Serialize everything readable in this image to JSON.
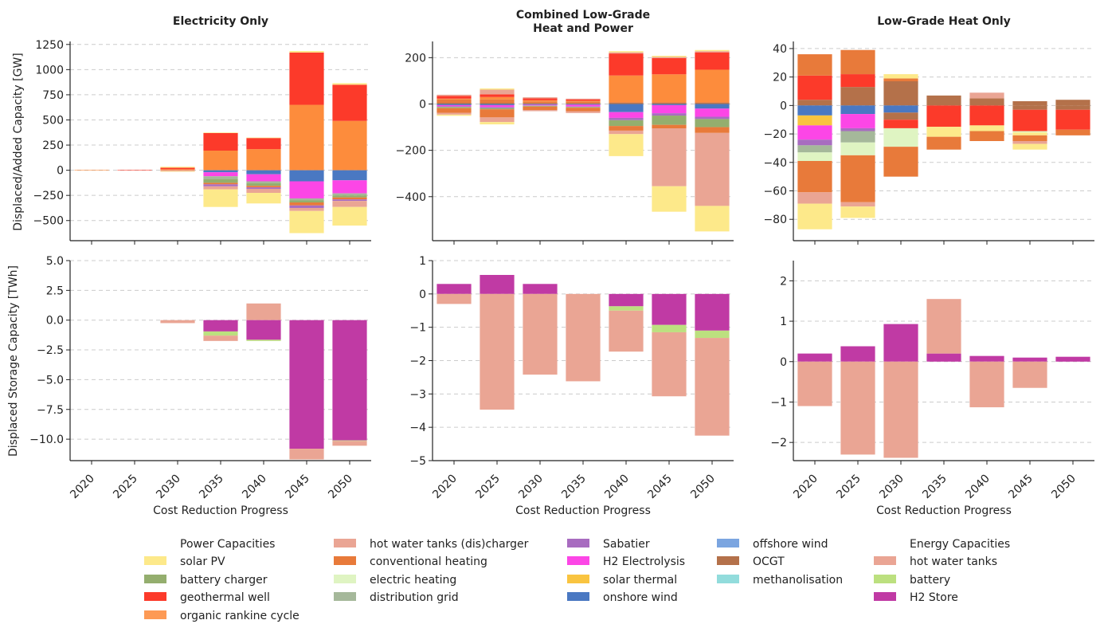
{
  "figure": {
    "ylabel_top": "Displaced/Added Capacity [GW]",
    "ylabel_bottom": "Displaced Storage Capacity [TWh]",
    "xlabel": "Cost Reduction Progress"
  },
  "legend": {
    "header_power": "Power Capacities",
    "header_energy": "Energy Capacities",
    "power_items": [
      {
        "label": "solar PV",
        "color": "#fde98a"
      },
      {
        "label": "battery charger",
        "color": "#94ae6e"
      },
      {
        "label": "geothermal well",
        "color": "#fc3a2a"
      },
      {
        "label": "organic rankine cycle",
        "color": "#fd9a55"
      },
      {
        "label": "hot water tanks (dis)charger",
        "color": "#eaa594"
      },
      {
        "label": "conventional heating",
        "color": "#e87a3a"
      },
      {
        "label": "electric heating",
        "color": "#dff4c2"
      },
      {
        "label": "distribution grid",
        "color": "#a5b89a"
      },
      {
        "label": "Sabatier",
        "color": "#a86cc0"
      },
      {
        "label": "H2 Electrolysis",
        "color": "#fc46e6"
      },
      {
        "label": "solar thermal",
        "color": "#f9c440"
      },
      {
        "label": "onshore wind",
        "color": "#4a78c2"
      },
      {
        "label": "offshore wind",
        "color": "#7ba5e0"
      },
      {
        "label": "OCGT",
        "color": "#b4714a"
      },
      {
        "label": "methanolisation",
        "color": "#92dcdc"
      }
    ],
    "energy_items": [
      {
        "label": "hot water tanks",
        "color": "#eaa594"
      },
      {
        "label": "battery",
        "color": "#bce07f"
      },
      {
        "label": "H2 Store",
        "color": "#c03aa4"
      }
    ]
  },
  "chart_data": [
    {
      "type": "bar",
      "stacked": true,
      "title": "Electricity Only",
      "ylabel": "Displaced/Added Capacity [GW]",
      "xlabel": "",
      "ylim": [
        -700,
        1280
      ],
      "yticks": [
        -500,
        -250,
        0,
        250,
        500,
        750,
        1000,
        1250
      ],
      "yticklabels": [
        "−500",
        "−250",
        "0",
        "250",
        "500",
        "750",
        "1000",
        "1250"
      ],
      "categories": [
        "2020",
        "2025",
        "2030",
        "2035",
        "2040",
        "2045",
        "2050"
      ],
      "grid": true,
      "series": [
        {
          "name": "organic rankine cycle",
          "color": "#fd8c3c",
          "values": [
            5,
            0,
            10,
            195,
            210,
            650,
            490
          ]
        },
        {
          "name": "geothermal well",
          "color": "#fc3a2a",
          "values": [
            0,
            5,
            15,
            175,
            110,
            520,
            360
          ]
        },
        {
          "name": "solar PV",
          "color": "#fde98a",
          "values": [
            0,
            0,
            10,
            5,
            5,
            15,
            15
          ]
        },
        {
          "name": "onshore wind",
          "color": "#4a78c2",
          "values": [
            0,
            0,
            0,
            -20,
            -40,
            -110,
            -100
          ]
        },
        {
          "name": "H2 Electrolysis",
          "color": "#fc46e6",
          "values": [
            0,
            0,
            0,
            -40,
            -70,
            -170,
            -130
          ]
        },
        {
          "name": "distribution grid",
          "color": "#a5b89a",
          "values": [
            0,
            0,
            0,
            -30,
            -20,
            -20,
            -20
          ]
        },
        {
          "name": "battery charger",
          "color": "#94ae6e",
          "values": [
            0,
            0,
            0,
            -35,
            -25,
            -20,
            -20
          ]
        },
        {
          "name": "conventional heating",
          "color": "#e87a3a",
          "values": [
            0,
            0,
            0,
            -15,
            -15,
            -30,
            -20
          ]
        },
        {
          "name": "Sabatier",
          "color": "#a86cc0",
          "values": [
            0,
            0,
            0,
            -20,
            -15,
            -25,
            -15
          ]
        },
        {
          "name": "hot water tanks (dis)charger",
          "color": "#eaa594",
          "values": [
            0,
            0,
            -10,
            -30,
            -40,
            -30,
            -60
          ]
        },
        {
          "name": "solar PV",
          "color": "#fde98a",
          "values": [
            0,
            0,
            -5,
            -175,
            -105,
            -220,
            -185
          ]
        }
      ]
    },
    {
      "type": "bar",
      "stacked": true,
      "title": "Combined Low-Grade\nHeat and Power",
      "ylabel": "",
      "xlabel": "",
      "ylim": [
        -590,
        270
      ],
      "yticks": [
        -400,
        -200,
        0,
        200
      ],
      "yticklabels": [
        "−400",
        "−200",
        "0",
        "200"
      ],
      "categories": [
        "2020",
        "2025",
        "2030",
        "2035",
        "2040",
        "2045",
        "2050"
      ],
      "grid": true,
      "series": [
        {
          "name": "OCGT",
          "color": "#b4714a",
          "values": [
            5,
            5,
            3,
            3,
            5,
            5,
            5
          ]
        },
        {
          "name": "conventional heating",
          "color": "#e87a3a",
          "values": [
            15,
            15,
            8,
            8,
            3,
            3,
            3
          ]
        },
        {
          "name": "organic rankine cycle",
          "color": "#fd8c3c",
          "values": [
            3,
            10,
            5,
            3,
            115,
            120,
            140
          ]
        },
        {
          "name": "geothermal well",
          "color": "#fc3a2a",
          "values": [
            12,
            12,
            8,
            6,
            95,
            70,
            75
          ]
        },
        {
          "name": "hot water tanks (dis)charger",
          "color": "#eaa594",
          "values": [
            5,
            20,
            5,
            3,
            5,
            5,
            5
          ]
        },
        {
          "name": "solar PV",
          "color": "#fde98a",
          "values": [
            0,
            5,
            0,
            0,
            5,
            5,
            5
          ]
        },
        {
          "name": "onshore wind",
          "color": "#4a78c2",
          "values": [
            -5,
            -5,
            -3,
            -3,
            -35,
            -5,
            -20
          ]
        },
        {
          "name": "H2 Electrolysis",
          "color": "#fc46e6",
          "values": [
            -5,
            -8,
            -3,
            -8,
            -25,
            -35,
            -35
          ]
        },
        {
          "name": "Sabatier",
          "color": "#a86cc0",
          "values": [
            -3,
            -5,
            -2,
            -2,
            -10,
            -10,
            -10
          ]
        },
        {
          "name": "battery charger",
          "color": "#94ae6e",
          "values": [
            -5,
            -5,
            -3,
            -3,
            -25,
            -40,
            -35
          ]
        },
        {
          "name": "conventional heating",
          "color": "#e87a3a",
          "values": [
            -20,
            -35,
            -15,
            -15,
            -20,
            -15,
            -25
          ]
        },
        {
          "name": "hot water tanks (dis)charger",
          "color": "#eaa594",
          "values": [
            -8,
            -20,
            -5,
            -8,
            -15,
            -250,
            -315
          ]
        },
        {
          "name": "solar PV",
          "color": "#fde98a",
          "values": [
            -5,
            -10,
            0,
            0,
            -95,
            -110,
            -110
          ]
        }
      ]
    },
    {
      "type": "bar",
      "stacked": true,
      "title": "Low-Grade Heat Only",
      "ylabel": "",
      "xlabel": "",
      "ylim": [
        -95,
        45
      ],
      "yticks": [
        -80,
        -60,
        -40,
        -20,
        0,
        20,
        40
      ],
      "yticklabels": [
        "−80",
        "−60",
        "−40",
        "−20",
        "0",
        "20",
        "40"
      ],
      "categories": [
        "2020",
        "2025",
        "2030",
        "2035",
        "2040",
        "2045",
        "2050"
      ],
      "grid": true,
      "series": [
        {
          "name": "OCGT",
          "color": "#b4714a",
          "values": [
            4,
            13,
            17,
            7,
            5,
            3,
            4
          ]
        },
        {
          "name": "geothermal well",
          "color": "#fc3a2a",
          "values": [
            17,
            9,
            0,
            0,
            0,
            0,
            0
          ]
        },
        {
          "name": "conventional heating",
          "color": "#e87a3a",
          "values": [
            15,
            17,
            2,
            0,
            0,
            0,
            0
          ]
        },
        {
          "name": "hot water tanks (dis)charger",
          "color": "#eaa594",
          "values": [
            0,
            0,
            0,
            0,
            4,
            0,
            0
          ]
        },
        {
          "name": "solar PV",
          "color": "#fde98a",
          "values": [
            0,
            0,
            3,
            0,
            0,
            0,
            0
          ]
        },
        {
          "name": "onshore wind",
          "color": "#4a78c2",
          "values": [
            -7,
            -6,
            -5,
            0,
            0,
            0,
            0
          ]
        },
        {
          "name": "solar thermal",
          "color": "#f9c440",
          "values": [
            -7,
            0,
            0,
            0,
            0,
            0,
            0
          ]
        },
        {
          "name": "OCGT",
          "color": "#b4714a",
          "values": [
            0,
            0,
            -5,
            0,
            0,
            -3,
            -3
          ]
        },
        {
          "name": "H2 Electrolysis",
          "color": "#fc46e6",
          "values": [
            -10,
            -10,
            0,
            0,
            0,
            0,
            0
          ]
        },
        {
          "name": "geothermal well",
          "color": "#fc3a2a",
          "values": [
            0,
            0,
            -6,
            -15,
            -14,
            -15,
            -14
          ]
        },
        {
          "name": "Sabatier",
          "color": "#a86cc0",
          "values": [
            -4,
            -2,
            0,
            0,
            0,
            0,
            0
          ]
        },
        {
          "name": "distribution grid",
          "color": "#a5b89a",
          "values": [
            -5,
            -8,
            0,
            0,
            0,
            0,
            0
          ]
        },
        {
          "name": "electric heating",
          "color": "#dff4c2",
          "values": [
            -6,
            -9,
            -13,
            0,
            0,
            -1,
            0
          ]
        },
        {
          "name": "solar PV",
          "color": "#fde98a",
          "values": [
            0,
            0,
            0,
            -7,
            -4,
            -2,
            0
          ]
        },
        {
          "name": "conventional heating",
          "color": "#e87a3a",
          "values": [
            -22,
            -33,
            -21,
            -9,
            -7,
            -4,
            -4
          ]
        },
        {
          "name": "hot water tanks (dis)charger",
          "color": "#eaa594",
          "values": [
            -8,
            -3,
            0,
            0,
            0,
            -2,
            0
          ]
        },
        {
          "name": "solar PV",
          "color": "#fde98a",
          "values": [
            -18,
            -8,
            0,
            0,
            0,
            -4,
            0
          ]
        }
      ]
    },
    {
      "type": "bar",
      "stacked": true,
      "title": "",
      "ylabel": "Displaced Storage Capacity [TWh]",
      "xlabel": "Cost Reduction Progress",
      "ylim": [
        -11.8,
        5.0
      ],
      "yticks": [
        -10.0,
        -7.5,
        -5.0,
        -2.5,
        0.0,
        2.5,
        5.0
      ],
      "yticklabels": [
        "−10.0",
        "−7.5",
        "−5.0",
        "−2.5",
        "0.0",
        "2.5",
        "5.0"
      ],
      "categories": [
        "2020",
        "2025",
        "2030",
        "2035",
        "2040",
        "2045",
        "2050"
      ],
      "grid": true,
      "series": [
        {
          "name": "hot water tanks",
          "color": "#eaa594",
          "values": [
            0,
            0,
            0,
            0,
            1.4,
            0,
            0
          ]
        },
        {
          "name": "H2 Store",
          "color": "#c03aa4",
          "values": [
            0,
            0,
            0,
            -0.95,
            -1.65,
            -10.8,
            -10.1
          ]
        },
        {
          "name": "battery",
          "color": "#bce07f",
          "values": [
            0,
            0,
            0,
            -0.35,
            -0.1,
            0,
            -0.05
          ]
        },
        {
          "name": "hot water tanks",
          "color": "#eaa594",
          "values": [
            0,
            0,
            -0.25,
            -0.45,
            0,
            -0.9,
            -0.4
          ]
        }
      ]
    },
    {
      "type": "bar",
      "stacked": true,
      "title": "",
      "ylabel": "",
      "xlabel": "Cost Reduction Progress",
      "ylim": [
        -5,
        1
      ],
      "yticks": [
        -5,
        -4,
        -3,
        -2,
        -1,
        0,
        1
      ],
      "yticklabels": [
        "−5",
        "−4",
        "−3",
        "−2",
        "−1",
        "0",
        "1"
      ],
      "categories": [
        "2020",
        "2025",
        "2030",
        "2035",
        "2040",
        "2045",
        "2050"
      ],
      "grid": true,
      "series": [
        {
          "name": "H2 Store",
          "color": "#c03aa4",
          "values": [
            0.3,
            0.57,
            0.3,
            0,
            -0.37,
            -0.93,
            -1.1
          ]
        },
        {
          "name": "battery",
          "color": "#bce07f",
          "values": [
            0,
            0,
            0,
            0,
            -0.13,
            -0.22,
            -0.22
          ]
        },
        {
          "name": "hot water tanks",
          "color": "#eaa594",
          "values": [
            -0.3,
            -3.47,
            -2.42,
            -2.62,
            -1.23,
            -1.92,
            -2.93
          ]
        }
      ]
    },
    {
      "type": "bar",
      "stacked": true,
      "title": "",
      "ylabel": "",
      "xlabel": "Cost Reduction Progress",
      "ylim": [
        -2.45,
        2.5
      ],
      "yticks": [
        -2,
        -1,
        0,
        1,
        2
      ],
      "yticklabels": [
        "−2",
        "−1",
        "0",
        "1",
        "2"
      ],
      "categories": [
        "2020",
        "2025",
        "2030",
        "2035",
        "2040",
        "2045",
        "2050"
      ],
      "grid": true,
      "series": [
        {
          "name": "H2 Store",
          "color": "#c03aa4",
          "values": [
            0.2,
            0.38,
            0.93,
            0.2,
            0.14,
            0.1,
            0.12
          ]
        },
        {
          "name": "hot water tanks",
          "color": "#eaa594",
          "values": [
            -1.1,
            -2.3,
            -2.38,
            1.35,
            -1.13,
            -0.65,
            0
          ]
        }
      ]
    }
  ]
}
